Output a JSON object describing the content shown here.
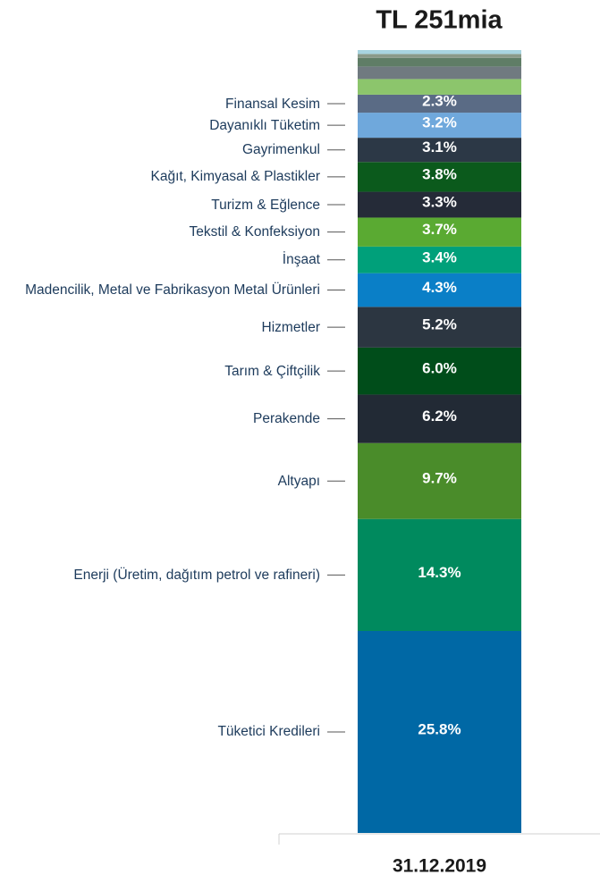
{
  "chart_data": {
    "type": "stacked-bar",
    "title": "TL 251mia",
    "categories": [
      "31.12.2019"
    ],
    "ylim": [
      0,
      100
    ],
    "series": [
      {
        "name": "Tüketici Kredileri",
        "color": "#0068a5",
        "values": [
          25.8
        ],
        "value_labels": [
          "25.8%"
        ]
      },
      {
        "name": "Enerji (Üretim, dağıtım petrol ve rafineri)",
        "color": "#008a5e",
        "values": [
          14.3
        ],
        "value_labels": [
          "14.3%"
        ]
      },
      {
        "name": "Altyapı",
        "color": "#4a8c2a",
        "values": [
          9.7
        ],
        "value_labels": [
          "9.7%"
        ]
      },
      {
        "name": "Perakende",
        "color": "#222a35",
        "values": [
          6.2
        ],
        "value_labels": [
          "6.2%"
        ]
      },
      {
        "name": "Tarım & Çiftçilik",
        "color": "#004d1a",
        "values": [
          6.0
        ],
        "value_labels": [
          "6.0%"
        ]
      },
      {
        "name": "Hizmetler",
        "color": "#2c3641",
        "values": [
          5.2
        ],
        "value_labels": [
          "5.2%"
        ]
      },
      {
        "name": "Madencilik, Metal ve Fabrikasyon Metal Ürünleri",
        "color": "#0a7fc7",
        "values": [
          4.3
        ],
        "value_labels": [
          "4.3%"
        ]
      },
      {
        "name": "İnşaat",
        "color": "#00a07a",
        "values": [
          3.4
        ],
        "value_labels": [
          "3.4%"
        ]
      },
      {
        "name": "Tekstil & Konfeksiyon",
        "color": "#5aaa32",
        "values": [
          3.7
        ],
        "value_labels": [
          "3.7%"
        ]
      },
      {
        "name": "Turizm & Eğlence",
        "color": "#252b38",
        "values": [
          3.3
        ],
        "value_labels": [
          "3.3%"
        ]
      },
      {
        "name": "Kağıt, Kimyasal & Plastikler",
        "color": "#0b5a1c",
        "values": [
          3.8
        ],
        "value_labels": [
          "3.8%"
        ]
      },
      {
        "name": "Gayrimenkul",
        "color": "#2c3846",
        "values": [
          3.1
        ],
        "value_labels": [
          "3.1%"
        ]
      },
      {
        "name": "Dayanıklı Tüketim",
        "color": "#6fa8dc",
        "values": [
          3.2
        ],
        "value_labels": [
          "3.2%"
        ]
      },
      {
        "name": "Finansal Kesim",
        "color": "#5a6b85",
        "values": [
          2.3
        ],
        "value_labels": [
          "2.3%"
        ]
      },
      {
        "color": "#8cc56c",
        "values": [
          2.0
        ]
      },
      {
        "color": "#707a80",
        "values": [
          1.6
        ]
      },
      {
        "color": "#5f7d66",
        "values": [
          1.1
        ]
      },
      {
        "color": "#8a9a8a",
        "values": [
          0.5
        ]
      },
      {
        "color": "#a8d4e0",
        "values": [
          0.5
        ]
      }
    ]
  }
}
